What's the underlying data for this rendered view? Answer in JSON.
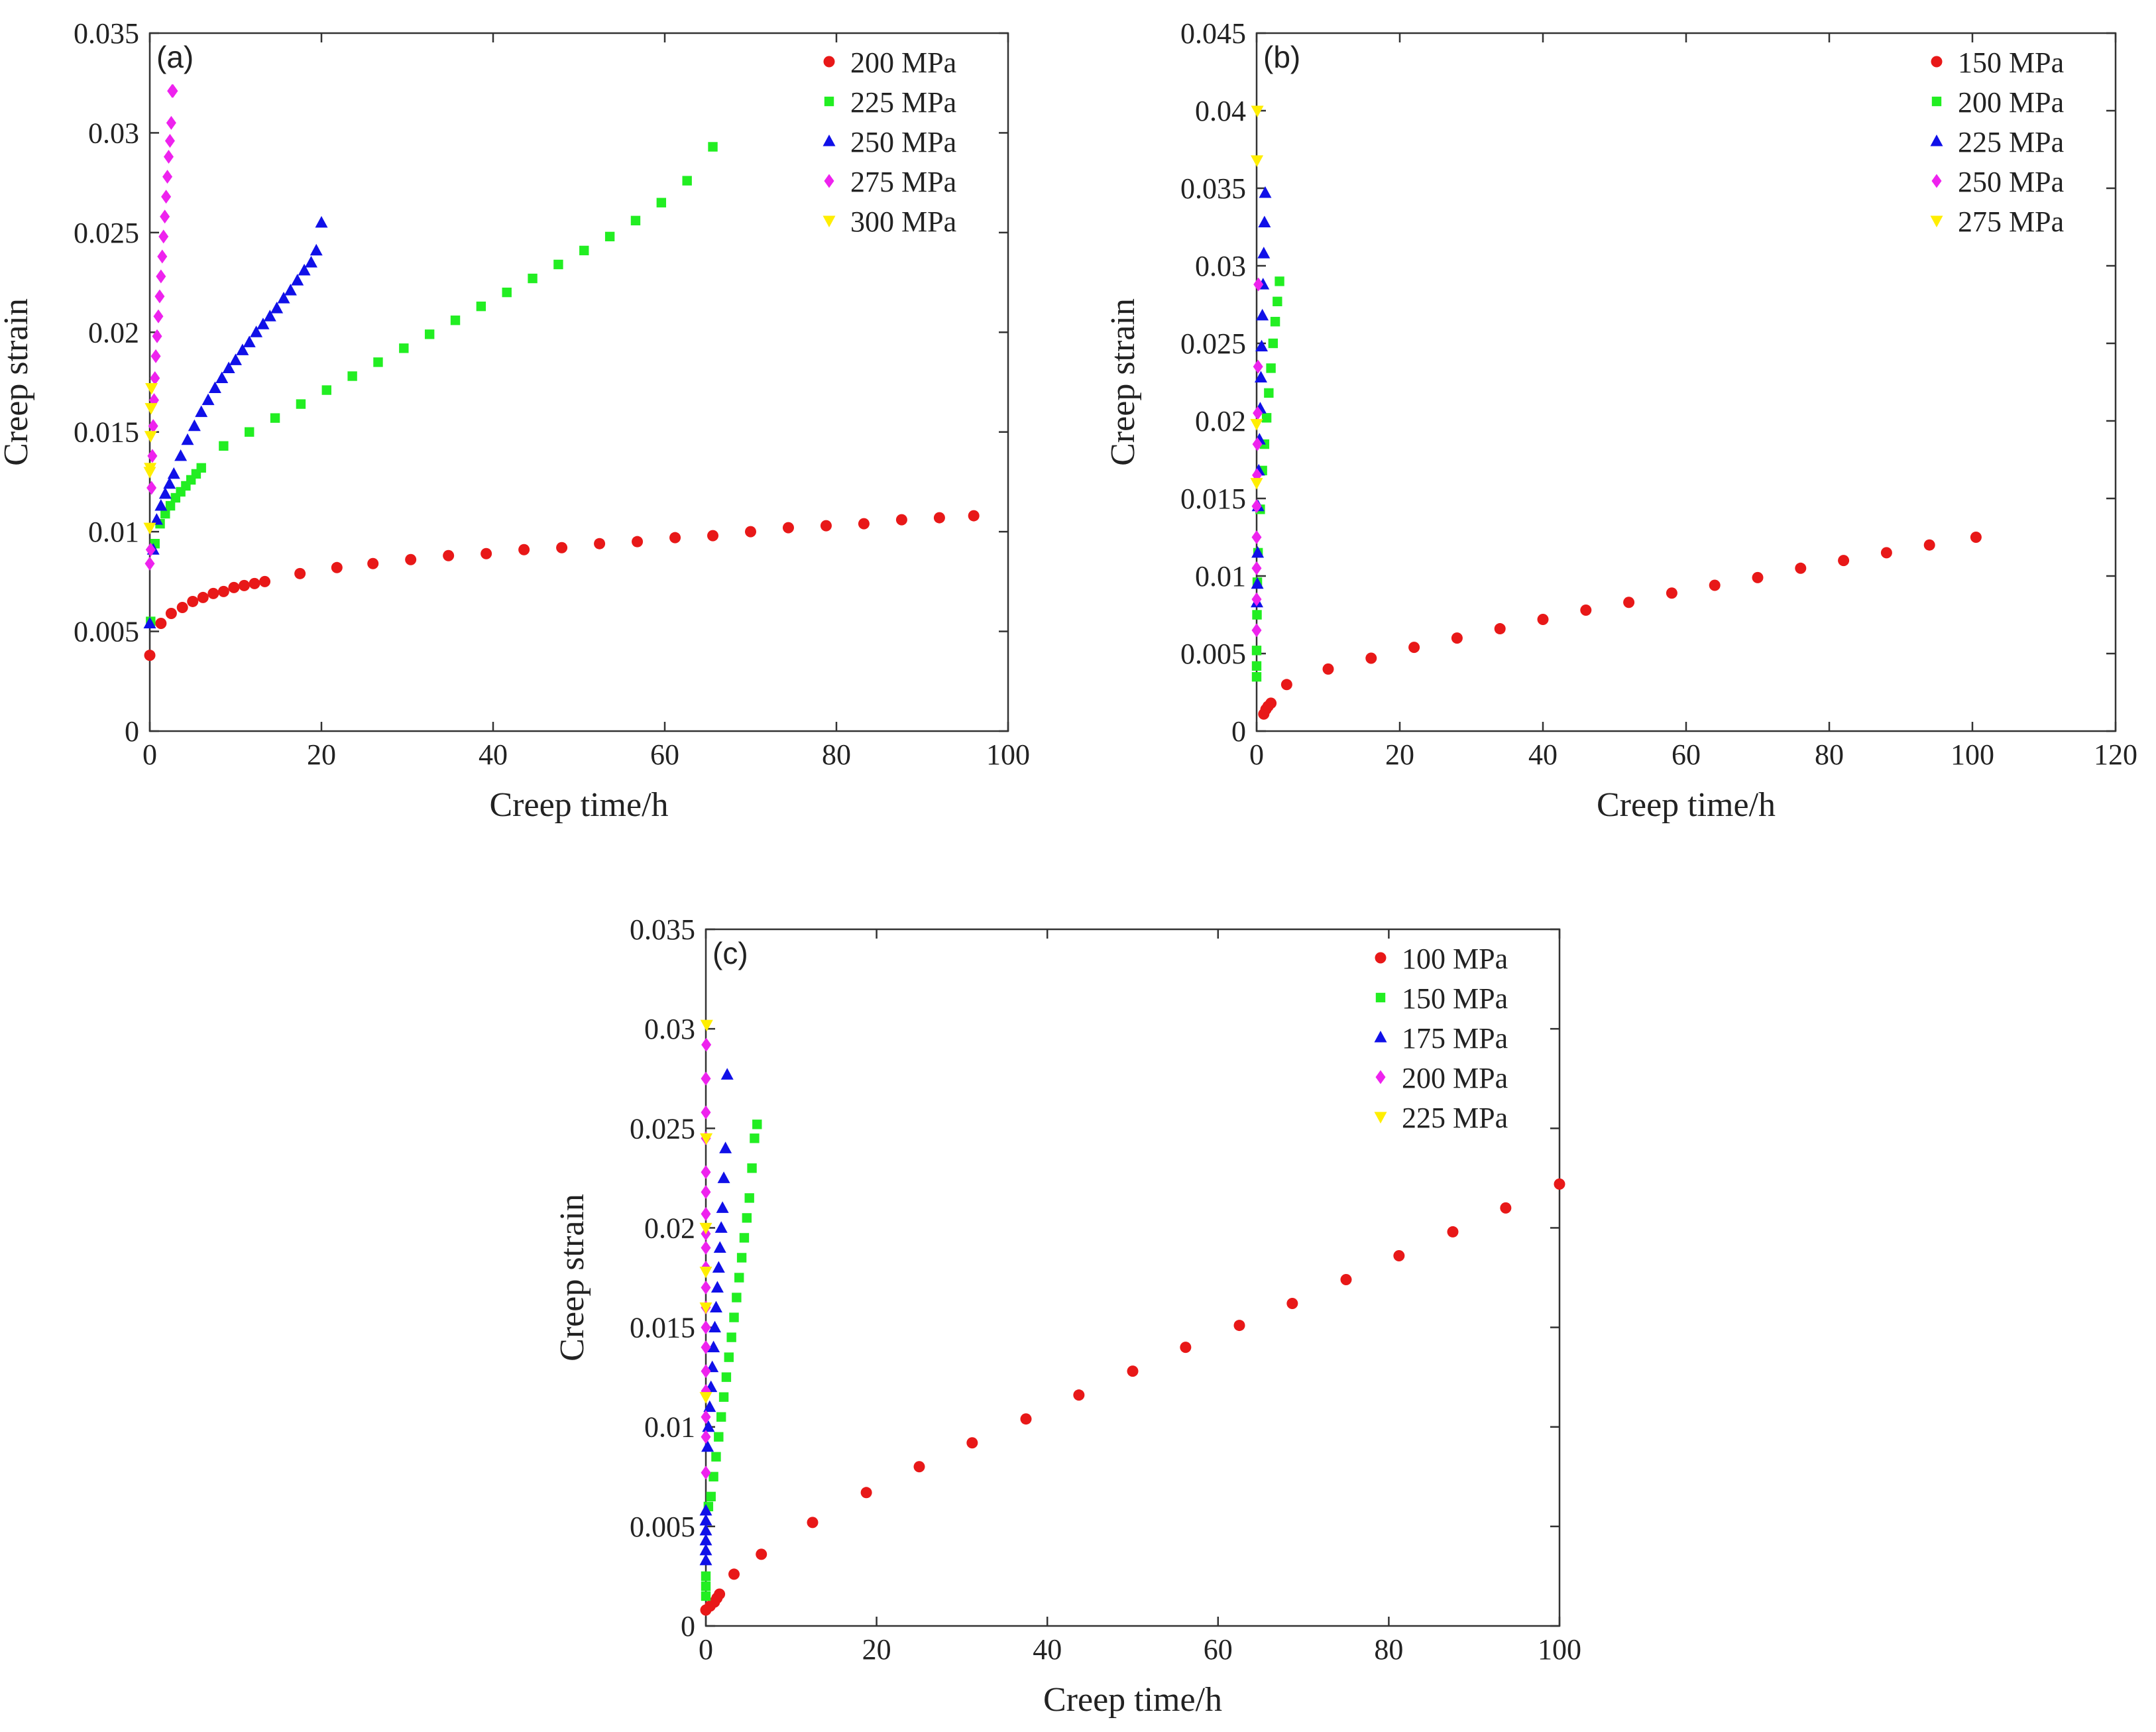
{
  "colors": {
    "red": "#e81818",
    "green": "#22ee22",
    "blue": "#1010e8",
    "magenta": "#ee22ee",
    "yellow": "#ffee00",
    "axis": "#333333"
  },
  "chart_data": [
    {
      "type": "scatter",
      "panel_label": "(a)",
      "xlabel": "Creep time/h",
      "ylabel": "Creep strain",
      "xlim": [
        0,
        100
      ],
      "ylim": [
        0,
        0.035
      ],
      "xticks": [
        "0",
        "20",
        "40",
        "60",
        "80",
        "100"
      ],
      "yticks": [
        "0",
        "0.005",
        "0.01",
        "0.015",
        "0.02",
        "0.025",
        "0.03",
        "0.035"
      ],
      "legend_position": "top-right",
      "series": [
        {
          "name": "200 MPa",
          "color": "red",
          "marker": "circle",
          "x": [
            0,
            1.3,
            2.5,
            3.8,
            5,
            6.2,
            7.4,
            8.6,
            9.8,
            11,
            12.2,
            13.4,
            17.5,
            21.8,
            26,
            30.4,
            34.8,
            39.2,
            43.6,
            48,
            52.4,
            56.8,
            61.2,
            65.6,
            70,
            74.4,
            78.8,
            83.2,
            87.6,
            92,
            96
          ],
          "y": [
            0.0038,
            0.0054,
            0.0059,
            0.0062,
            0.0065,
            0.0067,
            0.0069,
            0.007,
            0.0072,
            0.0073,
            0.0074,
            0.0075,
            0.0079,
            0.0082,
            0.0084,
            0.0086,
            0.0088,
            0.0089,
            0.0091,
            0.0092,
            0.0094,
            0.0095,
            0.0097,
            0.0098,
            0.01,
            0.0102,
            0.0103,
            0.0104,
            0.0106,
            0.0107,
            0.0108
          ]
        },
        {
          "name": "225 MPa",
          "color": "green",
          "marker": "square",
          "x": [
            0.1,
            0.6,
            1.2,
            1.8,
            2.4,
            3,
            3.6,
            4.2,
            4.8,
            5.4,
            6,
            8.6,
            11.6,
            14.6,
            17.6,
            20.6,
            23.6,
            26.6,
            29.6,
            32.6,
            35.6,
            38.6,
            41.6,
            44.6,
            47.6,
            50.6,
            53.6,
            56.6,
            59.6,
            62.6,
            65.6
          ],
          "y": [
            0.0055,
            0.0094,
            0.0104,
            0.0109,
            0.0113,
            0.0117,
            0.012,
            0.0123,
            0.0126,
            0.0129,
            0.0132,
            0.0143,
            0.015,
            0.0157,
            0.0164,
            0.0171,
            0.0178,
            0.0185,
            0.0192,
            0.0199,
            0.0206,
            0.0213,
            0.022,
            0.0227,
            0.0234,
            0.0241,
            0.0248,
            0.0256,
            0.0265,
            0.0276,
            0.0293
          ]
        },
        {
          "name": "250 MPa",
          "color": "blue",
          "marker": "triangle-up",
          "x": [
            0,
            0.4,
            0.8,
            1.3,
            1.8,
            2.3,
            2.8,
            3.6,
            4.4,
            5.2,
            6,
            6.8,
            7.6,
            8.4,
            9.2,
            10,
            10.8,
            11.6,
            12.4,
            13.2,
            14,
            14.8,
            15.6,
            16.4,
            17.2,
            18,
            18.8,
            19.4,
            20
          ],
          "y": [
            0.0054,
            0.0091,
            0.0106,
            0.0113,
            0.0119,
            0.0124,
            0.0129,
            0.0138,
            0.0146,
            0.0153,
            0.016,
            0.0166,
            0.0172,
            0.0177,
            0.0182,
            0.0186,
            0.0191,
            0.0195,
            0.02,
            0.0204,
            0.0208,
            0.0212,
            0.0217,
            0.0221,
            0.0226,
            0.0231,
            0.0235,
            0.0241,
            0.0255
          ]
        },
        {
          "name": "275 MPa",
          "color": "magenta",
          "marker": "diamond",
          "x": [
            0,
            0.1,
            0.2,
            0.3,
            0.4,
            0.5,
            0.6,
            0.7,
            0.85,
            1,
            1.15,
            1.3,
            1.45,
            1.6,
            1.75,
            1.9,
            2.05,
            2.2,
            2.35,
            2.5,
            2.6,
            2.7
          ],
          "y": [
            0.0084,
            0.0091,
            0.0122,
            0.0138,
            0.0153,
            0.0166,
            0.0177,
            0.0188,
            0.0198,
            0.0208,
            0.0218,
            0.0228,
            0.0238,
            0.0248,
            0.0258,
            0.0268,
            0.0278,
            0.0288,
            0.0296,
            0.0305,
            0.0321,
            0.0321
          ]
        },
        {
          "name": "300 MPa",
          "color": "yellow",
          "marker": "triangle-down",
          "x": [
            0,
            0,
            0.05,
            0.1,
            0.15,
            0.2
          ],
          "y": [
            0.0102,
            0.013,
            0.0132,
            0.0148,
            0.0162,
            0.0172
          ]
        }
      ]
    },
    {
      "type": "scatter",
      "panel_label": "(b)",
      "xlabel": "Creep time/h",
      "ylabel": "Creep strain",
      "xlim": [
        0,
        120
      ],
      "ylim": [
        0,
        0.045
      ],
      "xticks": [
        "0",
        "20",
        "40",
        "60",
        "80",
        "100",
        "120"
      ],
      "yticks": [
        "0",
        "0.005",
        "0.01",
        "0.015",
        "0.02",
        "0.025",
        "0.03",
        "0.035",
        "0.04",
        "0.045"
      ],
      "legend_position": "top-right",
      "series": [
        {
          "name": "150 MPa",
          "color": "red",
          "marker": "circle",
          "x": [
            1,
            1.3,
            1.6,
            2,
            4.2,
            10,
            16,
            22,
            28,
            34,
            40,
            46,
            52,
            58,
            64,
            70,
            76,
            82,
            88,
            94,
            100.5
          ],
          "y": [
            0.0011,
            0.0014,
            0.0016,
            0.0018,
            0.003,
            0.004,
            0.0047,
            0.0054,
            0.006,
            0.0066,
            0.0072,
            0.0078,
            0.0083,
            0.0089,
            0.0094,
            0.0099,
            0.0105,
            0.011,
            0.0115,
            0.012,
            0.0125
          ]
        },
        {
          "name": "200 MPa",
          "color": "green",
          "marker": "square",
          "x": [
            0,
            0,
            0,
            0.05,
            0.1,
            0.2,
            0.5,
            0.8,
            1.1,
            1.4,
            1.7,
            2,
            2.3,
            2.6,
            2.9,
            3.2
          ],
          "y": [
            0.0035,
            0.0042,
            0.0052,
            0.0075,
            0.0096,
            0.0115,
            0.0143,
            0.0168,
            0.0185,
            0.0202,
            0.0218,
            0.0234,
            0.025,
            0.0264,
            0.0277,
            0.029
          ]
        },
        {
          "name": "225 MPa",
          "color": "blue",
          "marker": "triangle-up",
          "x": [
            0.05,
            0.1,
            0.15,
            0.2,
            0.3,
            0.4,
            0.5,
            0.6,
            0.7,
            0.8,
            0.9,
            1,
            1.1,
            1.2
          ],
          "y": [
            0.0083,
            0.0095,
            0.0115,
            0.0145,
            0.0168,
            0.0188,
            0.0208,
            0.0228,
            0.0248,
            0.0268,
            0.0288,
            0.0308,
            0.0328,
            0.0347
          ]
        },
        {
          "name": "250 MPa",
          "color": "magenta",
          "marker": "diamond",
          "x": [
            0,
            0,
            0,
            0,
            0,
            0.05,
            0.1,
            0.15,
            0.2,
            0.25
          ],
          "y": [
            0.0065,
            0.0085,
            0.0105,
            0.0125,
            0.0145,
            0.0165,
            0.0185,
            0.0205,
            0.0235,
            0.0288
          ]
        },
        {
          "name": "275 MPa",
          "color": "yellow",
          "marker": "triangle-down",
          "x": [
            0,
            0,
            0.05,
            0.1
          ],
          "y": [
            0.016,
            0.0198,
            0.0368,
            0.04
          ]
        }
      ]
    },
    {
      "type": "scatter",
      "panel_label": "(c)",
      "xlabel": "Creep time/h",
      "ylabel": "Creep strain",
      "xlim": [
        0,
        100
      ],
      "ylim": [
        0,
        0.035
      ],
      "xticks": [
        "0",
        "20",
        "40",
        "60",
        "80",
        "100"
      ],
      "yticks": [
        "0",
        "0.005",
        "0.01",
        "0.015",
        "0.02",
        "0.025",
        "0.03",
        "0.035"
      ],
      "legend_position": "top-right",
      "series": [
        {
          "name": "100 MPa",
          "color": "red",
          "marker": "circle",
          "x": [
            0,
            0.5,
            1,
            1.3,
            1.6,
            3.3,
            6.5,
            12.5,
            18.8,
            25,
            31.2,
            37.5,
            43.7,
            50,
            56.2,
            62.5,
            68.7,
            75,
            81.2,
            87.5,
            93.7,
            100
          ],
          "y": [
            0.0008,
            0.001,
            0.0012,
            0.0014,
            0.0016,
            0.0026,
            0.0036,
            0.0052,
            0.0067,
            0.008,
            0.0092,
            0.0104,
            0.0116,
            0.0128,
            0.014,
            0.0151,
            0.0162,
            0.0174,
            0.0186,
            0.0198,
            0.021,
            0.0222
          ]
        },
        {
          "name": "150 MPa",
          "color": "green",
          "marker": "square",
          "x": [
            0,
            0,
            0,
            0.3,
            0.6,
            0.9,
            1.2,
            1.5,
            1.8,
            2.1,
            2.4,
            2.7,
            3,
            3.3,
            3.6,
            3.9,
            4.2,
            4.5,
            4.8,
            5.1,
            5.4,
            5.7,
            6
          ],
          "y": [
            0.0015,
            0.002,
            0.0025,
            0.006,
            0.0065,
            0.0075,
            0.0085,
            0.0095,
            0.0105,
            0.0115,
            0.0125,
            0.0135,
            0.0145,
            0.0155,
            0.0165,
            0.0175,
            0.0185,
            0.0195,
            0.0205,
            0.0215,
            0.023,
            0.0245,
            0.0252
          ]
        },
        {
          "name": "175 MPa",
          "color": "blue",
          "marker": "triangle-up",
          "x": [
            0,
            0,
            0,
            0,
            0,
            0,
            0.2,
            0.3,
            0.45,
            0.6,
            0.75,
            0.9,
            1.05,
            1.2,
            1.35,
            1.5,
            1.65,
            1.8,
            1.95,
            2.1,
            2.3,
            2.5
          ],
          "y": [
            0.0033,
            0.0038,
            0.0043,
            0.0048,
            0.0053,
            0.0058,
            0.009,
            0.01,
            0.011,
            0.012,
            0.013,
            0.014,
            0.015,
            0.016,
            0.017,
            0.018,
            0.019,
            0.02,
            0.021,
            0.0225,
            0.024,
            0.0277
          ]
        },
        {
          "name": "200 MPa",
          "color": "magenta",
          "marker": "diamond",
          "x": [
            0,
            0,
            0,
            0,
            0,
            0,
            0,
            0,
            0,
            0,
            0,
            0,
            0,
            0,
            0,
            0,
            0,
            0,
            0.05
          ],
          "y": [
            0.0077,
            0.0095,
            0.0105,
            0.0118,
            0.0128,
            0.014,
            0.015,
            0.016,
            0.017,
            0.018,
            0.019,
            0.0197,
            0.0207,
            0.0218,
            0.0228,
            0.0245,
            0.0258,
            0.0275,
            0.0292
          ]
        },
        {
          "name": "225 MPa",
          "color": "yellow",
          "marker": "triangle-down",
          "x": [
            0,
            0,
            0,
            0,
            0.05,
            0.1
          ],
          "y": [
            0.0115,
            0.016,
            0.0178,
            0.02,
            0.0245,
            0.0302
          ]
        }
      ]
    }
  ]
}
